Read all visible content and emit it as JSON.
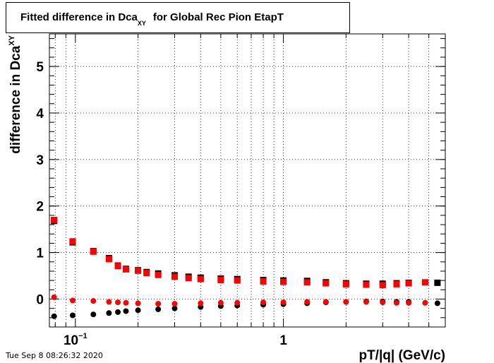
{
  "title": {
    "main": "Fitted difference in Dca",
    "sub": "XY",
    "rest": "for Global Rec Pion EtapT"
  },
  "timestamp": "Tue Sep  8 08:26:32 2020",
  "colors": {
    "black": "#000000",
    "red": "#ff0000",
    "grid": "#000000"
  },
  "chart_data": {
    "type": "scatter",
    "xscale": "log",
    "xlim": [
      0.075,
      6.0
    ],
    "ylim": [
      -0.6,
      5.7
    ],
    "grid": true,
    "xlabel": "pT/|q| (GeV/c)",
    "ylabel": "difference in Dca",
    "ylabel_sub": "XY",
    "ytick_labels": [
      "0",
      "1",
      "2",
      "3",
      "4",
      "5"
    ],
    "yticks": [
      0,
      1,
      2,
      3,
      4,
      5
    ],
    "xtick_labels": [
      {
        "value": 0.1,
        "base": "10",
        "exp": "−1"
      },
      {
        "value": 1,
        "base": "1",
        "exp": ""
      }
    ],
    "series": [
      {
        "marker": "square",
        "color": "#000000",
        "points": [
          [
            0.079,
            1.68
          ],
          [
            0.097,
            1.22
          ],
          [
            0.122,
            1.03
          ],
          [
            0.145,
            0.88
          ],
          [
            0.16,
            0.72
          ],
          [
            0.175,
            0.65
          ],
          [
            0.2,
            0.62
          ],
          [
            0.22,
            0.58
          ],
          [
            0.25,
            0.55
          ],
          [
            0.3,
            0.51
          ],
          [
            0.35,
            0.48
          ],
          [
            0.4,
            0.46
          ],
          [
            0.5,
            0.44
          ],
          [
            0.6,
            0.43
          ],
          [
            0.8,
            0.41
          ],
          [
            1.0,
            0.4
          ],
          [
            1.3,
            0.39
          ],
          [
            1.6,
            0.36
          ],
          [
            2.0,
            0.34
          ],
          [
            2.5,
            0.33
          ],
          [
            3.0,
            0.33
          ],
          [
            3.5,
            0.34
          ],
          [
            4.0,
            0.35
          ],
          [
            5.5,
            0.35
          ]
        ]
      },
      {
        "marker": "square",
        "color": "#ff0000",
        "points": [
          [
            0.079,
            1.7
          ],
          [
            0.097,
            1.24
          ],
          [
            0.122,
            1.02
          ],
          [
            0.145,
            0.86
          ],
          [
            0.16,
            0.71
          ],
          [
            0.175,
            0.64
          ],
          [
            0.2,
            0.61
          ],
          [
            0.22,
            0.56
          ],
          [
            0.25,
            0.52
          ],
          [
            0.3,
            0.48
          ],
          [
            0.35,
            0.45
          ],
          [
            0.4,
            0.43
          ],
          [
            0.5,
            0.41
          ],
          [
            0.6,
            0.4
          ],
          [
            0.8,
            0.38
          ],
          [
            1.0,
            0.37
          ],
          [
            1.3,
            0.36
          ],
          [
            1.6,
            0.34
          ],
          [
            2.0,
            0.32
          ],
          [
            2.5,
            0.31
          ],
          [
            3.0,
            0.3
          ],
          [
            3.5,
            0.32
          ],
          [
            4.0,
            0.34
          ],
          [
            4.8,
            0.36
          ]
        ]
      },
      {
        "marker": "circle",
        "color": "#000000",
        "points": [
          [
            0.079,
            -0.37
          ],
          [
            0.097,
            -0.35
          ],
          [
            0.122,
            -0.33
          ],
          [
            0.145,
            -0.3
          ],
          [
            0.16,
            -0.28
          ],
          [
            0.175,
            -0.26
          ],
          [
            0.2,
            -0.24
          ],
          [
            0.25,
            -0.22
          ],
          [
            0.3,
            -0.2
          ],
          [
            0.4,
            -0.17
          ],
          [
            0.5,
            -0.15
          ],
          [
            0.6,
            -0.14
          ],
          [
            0.8,
            -0.12
          ],
          [
            1.0,
            -0.11
          ],
          [
            1.3,
            -0.09
          ],
          [
            1.6,
            -0.07
          ],
          [
            2.0,
            -0.06
          ],
          [
            2.5,
            -0.05
          ],
          [
            3.0,
            -0.05
          ],
          [
            3.5,
            -0.06
          ],
          [
            4.0,
            -0.06
          ],
          [
            5.5,
            -0.09
          ]
        ]
      },
      {
        "marker": "circle",
        "color": "#ff0000",
        "points": [
          [
            0.079,
            0.04
          ],
          [
            0.097,
            -0.03
          ],
          [
            0.122,
            -0.04
          ],
          [
            0.145,
            -0.06
          ],
          [
            0.16,
            -0.07
          ],
          [
            0.175,
            -0.08
          ],
          [
            0.2,
            -0.09
          ],
          [
            0.25,
            -0.1
          ],
          [
            0.3,
            -0.1
          ],
          [
            0.4,
            -0.09
          ],
          [
            0.5,
            -0.08
          ],
          [
            0.6,
            -0.08
          ],
          [
            0.8,
            -0.07
          ],
          [
            1.0,
            -0.07
          ],
          [
            1.3,
            -0.06
          ],
          [
            1.6,
            -0.06
          ],
          [
            2.0,
            -0.06
          ],
          [
            2.5,
            -0.06
          ],
          [
            3.0,
            -0.07
          ],
          [
            3.5,
            -0.08
          ],
          [
            4.0,
            -0.08
          ],
          [
            4.8,
            -0.08
          ]
        ]
      }
    ]
  }
}
